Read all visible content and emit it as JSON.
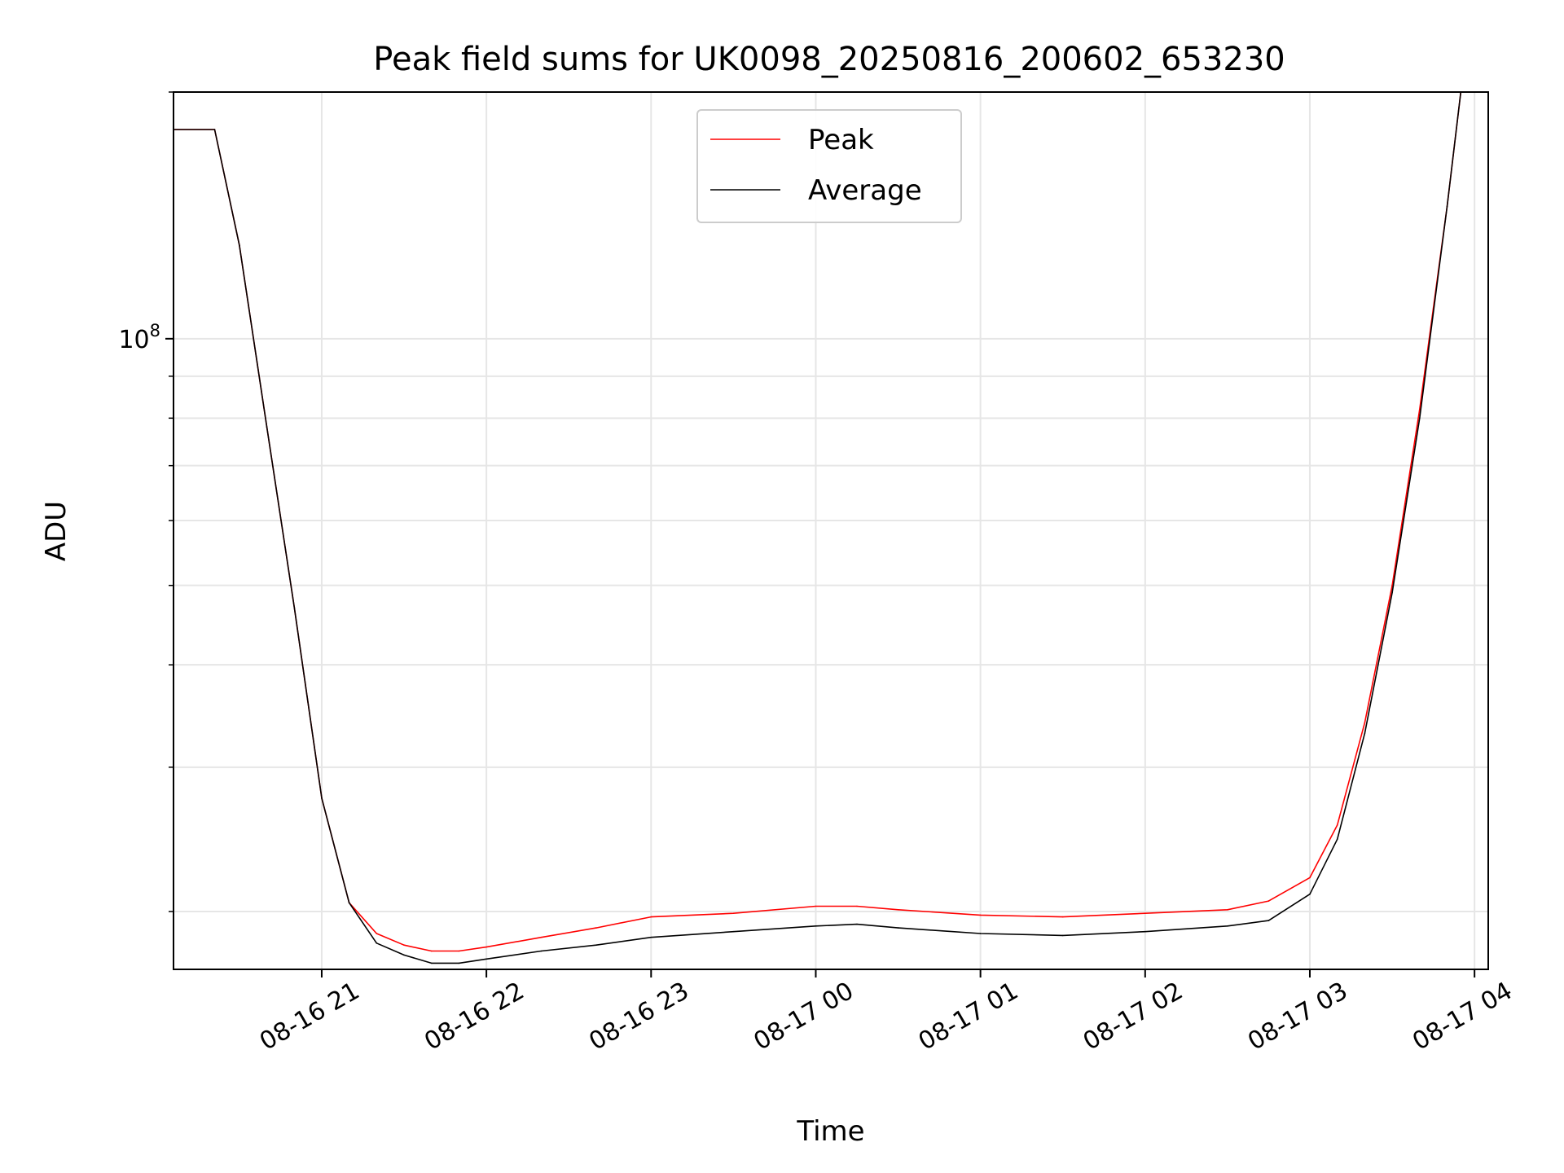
{
  "chart_data": {
    "type": "line",
    "title": "Peak field sums for UK0098_20250816_200602_653230",
    "xlabel": "Time",
    "ylabel": "ADU",
    "yscale": "log",
    "ylim": [
      17000000,
      200000000
    ],
    "xlim": [
      "2025-08-16 20:06",
      "2025-08-17 04:05"
    ],
    "grid": true,
    "legend_position": "top-center",
    "x_ticks": [
      {
        "t": "2025-08-16 21:00",
        "label": "08-16 21"
      },
      {
        "t": "2025-08-16 22:00",
        "label": "08-16 22"
      },
      {
        "t": "2025-08-16 23:00",
        "label": "08-16 23"
      },
      {
        "t": "2025-08-17 00:00",
        "label": "08-17 00"
      },
      {
        "t": "2025-08-17 01:00",
        "label": "08-17 01"
      },
      {
        "t": "2025-08-17 02:00",
        "label": "08-17 02"
      },
      {
        "t": "2025-08-17 03:00",
        "label": "08-17 03"
      },
      {
        "t": "2025-08-17 04:00",
        "label": "08-17 04"
      }
    ],
    "y_major_ticks": [
      {
        "v": 100000000,
        "base": "10",
        "exp": "8"
      }
    ],
    "y_minor_ticks": [
      20000000,
      30000000,
      40000000,
      50000000,
      60000000,
      70000000,
      80000000,
      90000000,
      200000000
    ],
    "series": [
      {
        "name": "Peak",
        "color": "#ff0000",
        "t": [
          "2025-08-16 20:06",
          "2025-08-16 20:21",
          "2025-08-16 20:30",
          "2025-08-16 20:40",
          "2025-08-16 20:50",
          "2025-08-16 21:00",
          "2025-08-16 21:10",
          "2025-08-16 21:20",
          "2025-08-16 21:30",
          "2025-08-16 21:40",
          "2025-08-16 21:50",
          "2025-08-16 22:00",
          "2025-08-16 22:20",
          "2025-08-16 22:40",
          "2025-08-16 23:00",
          "2025-08-16 23:30",
          "2025-08-17 00:00",
          "2025-08-17 00:15",
          "2025-08-17 00:30",
          "2025-08-17 01:00",
          "2025-08-17 01:30",
          "2025-08-17 02:00",
          "2025-08-17 02:30",
          "2025-08-17 02:45",
          "2025-08-17 03:00",
          "2025-08-17 03:10",
          "2025-08-17 03:20",
          "2025-08-17 03:30",
          "2025-08-17 03:40",
          "2025-08-17 03:50",
          "2025-08-17 03:55",
          "2025-08-17 04:05"
        ],
        "values": [
          180000000,
          180000000,
          130000000,
          78000000,
          47000000,
          27500000,
          20500000,
          18800000,
          18200000,
          17900000,
          17900000,
          18100000,
          18600000,
          19100000,
          19700000,
          19900000,
          20300000,
          20300000,
          20100000,
          19800000,
          19700000,
          19900000,
          20100000,
          20600000,
          22000000,
          25500000,
          34000000,
          50000000,
          82000000,
          145000000,
          200000000,
          200000000
        ]
      },
      {
        "name": "Average",
        "color": "#000000",
        "t": [
          "2025-08-16 20:06",
          "2025-08-16 20:21",
          "2025-08-16 20:30",
          "2025-08-16 20:40",
          "2025-08-16 20:50",
          "2025-08-16 21:00",
          "2025-08-16 21:10",
          "2025-08-16 21:20",
          "2025-08-16 21:30",
          "2025-08-16 21:40",
          "2025-08-16 21:50",
          "2025-08-16 22:00",
          "2025-08-16 22:20",
          "2025-08-16 22:40",
          "2025-08-16 23:00",
          "2025-08-16 23:30",
          "2025-08-17 00:00",
          "2025-08-17 00:15",
          "2025-08-17 00:30",
          "2025-08-17 01:00",
          "2025-08-17 01:30",
          "2025-08-17 02:00",
          "2025-08-17 02:30",
          "2025-08-17 02:45",
          "2025-08-17 03:00",
          "2025-08-17 03:10",
          "2025-08-17 03:20",
          "2025-08-17 03:30",
          "2025-08-17 03:40",
          "2025-08-17 03:50",
          "2025-08-17 03:55",
          "2025-08-17 04:05"
        ],
        "values": [
          180000000,
          180000000,
          130000000,
          78000000,
          47000000,
          27500000,
          20500000,
          18300000,
          17700000,
          17300000,
          17300000,
          17500000,
          17900000,
          18200000,
          18600000,
          18900000,
          19200000,
          19300000,
          19100000,
          18800000,
          18700000,
          18900000,
          19200000,
          19500000,
          21000000,
          24500000,
          33000000,
          49000000,
          80000000,
          145000000,
          200000000,
          200000000
        ]
      }
    ]
  }
}
